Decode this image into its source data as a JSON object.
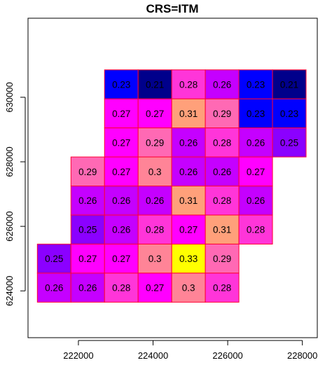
{
  "chart_data": {
    "type": "heatmap",
    "title": "CRS=ITM",
    "xlabel": "",
    "ylabel": "",
    "xlim": [
      220650,
      228400
    ],
    "ylim": [
      622550,
      632450
    ],
    "x_ticks": [
      222000,
      224000,
      226000,
      228000
    ],
    "y_ticks": [
      624000,
      626000,
      628000,
      630000
    ],
    "x_tick_labels": [
      "222000",
      "224000",
      "226000",
      "228000"
    ],
    "y_tick_labels": [
      "624000",
      "626000",
      "628000",
      "630000"
    ],
    "cell_size": 900,
    "x_origin": 220900,
    "y_origin": 623650,
    "color_range": [
      0.21,
      0.33
    ],
    "grid_columns": 8,
    "grid_rows": 8,
    "cells": [
      {
        "row": 0,
        "col": 2,
        "value": "0.23"
      },
      {
        "row": 0,
        "col": 3,
        "value": "0.21"
      },
      {
        "row": 0,
        "col": 4,
        "value": "0.28"
      },
      {
        "row": 0,
        "col": 5,
        "value": "0.26"
      },
      {
        "row": 0,
        "col": 6,
        "value": "0.23"
      },
      {
        "row": 0,
        "col": 7,
        "value": "0.21"
      },
      {
        "row": 1,
        "col": 2,
        "value": "0.27"
      },
      {
        "row": 1,
        "col": 3,
        "value": "0.27"
      },
      {
        "row": 1,
        "col": 4,
        "value": "0.31"
      },
      {
        "row": 1,
        "col": 5,
        "value": "0.29"
      },
      {
        "row": 1,
        "col": 6,
        "value": "0.23"
      },
      {
        "row": 1,
        "col": 7,
        "value": "0.23"
      },
      {
        "row": 2,
        "col": 2,
        "value": "0.27"
      },
      {
        "row": 2,
        "col": 3,
        "value": "0.29"
      },
      {
        "row": 2,
        "col": 4,
        "value": "0.26"
      },
      {
        "row": 2,
        "col": 5,
        "value": "0.28"
      },
      {
        "row": 2,
        "col": 6,
        "value": "0.26"
      },
      {
        "row": 2,
        "col": 7,
        "value": "0.25"
      },
      {
        "row": 3,
        "col": 1,
        "value": "0.29"
      },
      {
        "row": 3,
        "col": 2,
        "value": "0.27"
      },
      {
        "row": 3,
        "col": 3,
        "value": "0.3"
      },
      {
        "row": 3,
        "col": 4,
        "value": "0.26"
      },
      {
        "row": 3,
        "col": 5,
        "value": "0.26"
      },
      {
        "row": 3,
        "col": 6,
        "value": "0.27"
      },
      {
        "row": 4,
        "col": 1,
        "value": "0.26"
      },
      {
        "row": 4,
        "col": 2,
        "value": "0.26"
      },
      {
        "row": 4,
        "col": 3,
        "value": "0.26"
      },
      {
        "row": 4,
        "col": 4,
        "value": "0.31"
      },
      {
        "row": 4,
        "col": 5,
        "value": "0.28"
      },
      {
        "row": 4,
        "col": 6,
        "value": "0.26"
      },
      {
        "row": 5,
        "col": 1,
        "value": "0.25"
      },
      {
        "row": 5,
        "col": 2,
        "value": "0.26"
      },
      {
        "row": 5,
        "col": 3,
        "value": "0.28"
      },
      {
        "row": 5,
        "col": 4,
        "value": "0.27"
      },
      {
        "row": 5,
        "col": 5,
        "value": "0.31"
      },
      {
        "row": 5,
        "col": 6,
        "value": "0.28"
      },
      {
        "row": 6,
        "col": 0,
        "value": "0.25"
      },
      {
        "row": 6,
        "col": 1,
        "value": "0.27"
      },
      {
        "row": 6,
        "col": 2,
        "value": "0.27"
      },
      {
        "row": 6,
        "col": 3,
        "value": "0.3"
      },
      {
        "row": 6,
        "col": 4,
        "value": "0.33"
      },
      {
        "row": 6,
        "col": 5,
        "value": "0.29"
      },
      {
        "row": 7,
        "col": 0,
        "value": "0.26"
      },
      {
        "row": 7,
        "col": 1,
        "value": "0.26"
      },
      {
        "row": 7,
        "col": 2,
        "value": "0.28"
      },
      {
        "row": 7,
        "col": 3,
        "value": "0.27"
      },
      {
        "row": 7,
        "col": 4,
        "value": "0.3"
      },
      {
        "row": 7,
        "col": 5,
        "value": "0.28"
      }
    ],
    "grid": false,
    "legend": "none"
  },
  "colors": {
    "cell_border": "#ff0033",
    "axis": "#000000",
    "background": "#ffffff",
    "palette": [
      "#00008b",
      "#0000ff",
      "#8b00ff",
      "#ff00ff",
      "#ff69b4",
      "#ffa07a",
      "#ffff00"
    ]
  }
}
